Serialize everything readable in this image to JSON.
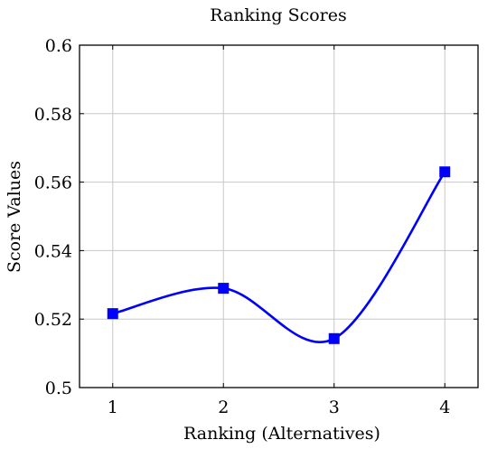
{
  "chart_data": {
    "type": "line",
    "title": "Ranking Scores",
    "xlabel": "Ranking (Alternatives)",
    "ylabel": "Score Values",
    "x": [
      1,
      2,
      3,
      4
    ],
    "x_ticks": [
      "1",
      "2",
      "3",
      "4"
    ],
    "xlim": [
      0.7,
      4.3
    ],
    "y_ticks": [
      "0.5",
      "0.52",
      "0.54",
      "0.56",
      "0.58",
      "0.6"
    ],
    "ylim": [
      0.5,
      0.6
    ],
    "grid": true,
    "series": [
      {
        "values": [
          0.5216,
          0.529,
          0.5143,
          0.563
        ],
        "color": "#0000ff",
        "marker": "square",
        "smooth": true
      }
    ]
  }
}
